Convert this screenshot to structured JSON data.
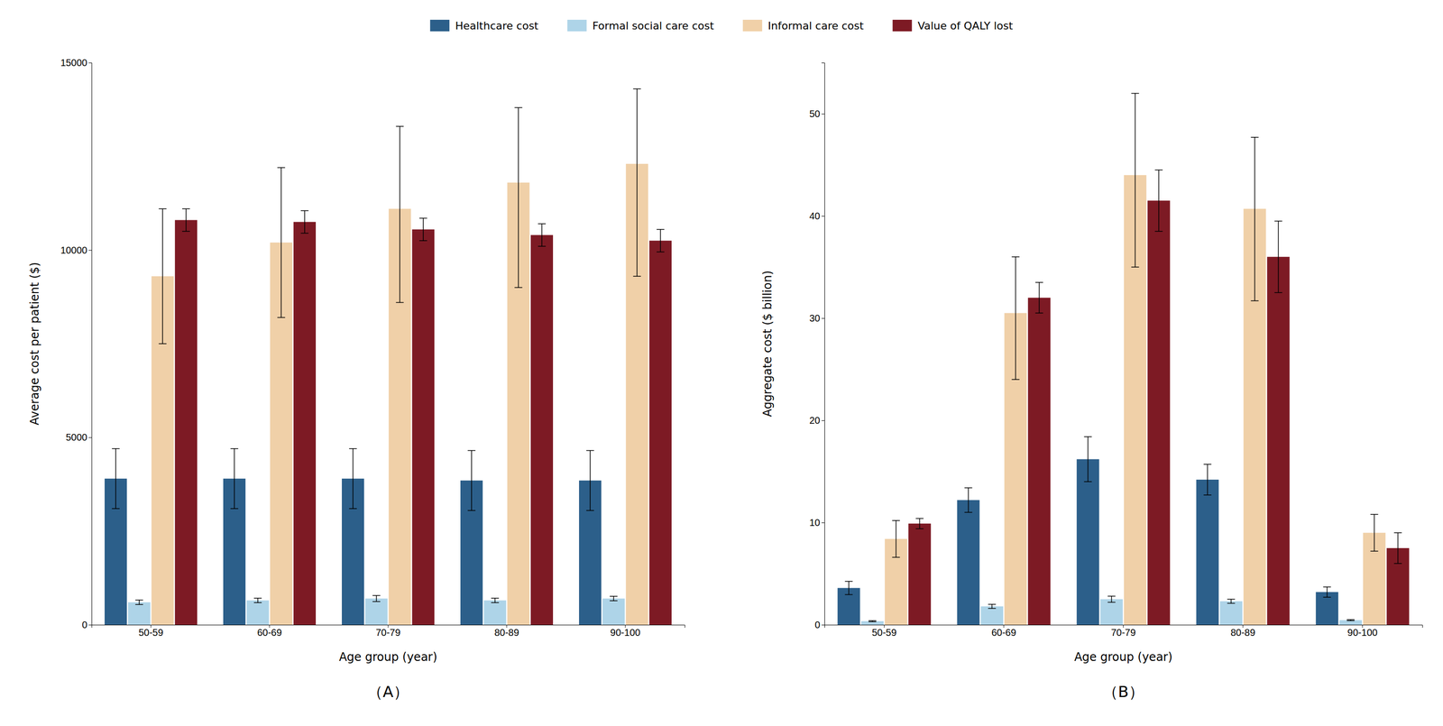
{
  "chart_data": [
    {
      "type": "bar",
      "title": "（A）",
      "xlabel": "Age group (year)",
      "ylabel": "Average cost per patient ($)",
      "categories": [
        "50-59",
        "60-69",
        "70-79",
        "80-89",
        "90-100"
      ],
      "series": [
        {
          "name": "Healthcare cost",
          "color": "#2c5f8a",
          "values": [
            3900,
            3900,
            3900,
            3850,
            3850
          ],
          "errors": [
            800,
            800,
            800,
            800,
            800
          ]
        },
        {
          "name": "Formal social care cost",
          "color": "#aed4e8",
          "values": [
            600,
            650,
            700,
            650,
            700
          ],
          "errors": [
            60,
            60,
            80,
            60,
            60
          ]
        },
        {
          "name": "Informal care cost",
          "color": "#f0d0a8",
          "values": [
            9300,
            10200,
            11100,
            11800,
            12300
          ],
          "errors_lo": [
            1800,
            2000,
            2500,
            2800,
            3000
          ],
          "errors_hi": [
            1800,
            2000,
            2200,
            2000,
            2000
          ]
        },
        {
          "name": "Value of QALY lost",
          "color": "#7d1a24",
          "values": [
            10800,
            10750,
            10550,
            10400,
            10250
          ],
          "errors_lo": [
            300,
            300,
            300,
            300,
            300
          ],
          "errors_hi": [
            300,
            300,
            300,
            300,
            300
          ]
        }
      ],
      "ylim": [
        0,
        15000
      ],
      "yticks": [
        0,
        5000,
        10000,
        15000
      ]
    },
    {
      "type": "bar",
      "title": "（B）",
      "xlabel": "Age group (year)",
      "ylabel": "Aggregate cost ($ billion)",
      "categories": [
        "50-59",
        "60-69",
        "70-79",
        "80-89",
        "90-100"
      ],
      "series": [
        {
          "color": "#2c5f8a",
          "values": [
            3.6,
            12.2,
            16.2,
            14.2,
            3.2
          ],
          "errors": [
            0.65,
            1.2,
            2.2,
            1.5,
            0.5
          ]
        },
        {
          "color": "#aed4e8",
          "values": [
            0.35,
            1.8,
            2.5,
            2.3,
            0.45
          ],
          "errors": [
            0.05,
            0.2,
            0.3,
            0.2,
            0.05
          ]
        },
        {
          "color": "#f0d0a8",
          "values": [
            8.4,
            30.5,
            44.0,
            40.7,
            9.0
          ],
          "errors_lo": [
            1.8,
            6.5,
            9.0,
            9.0,
            1.8
          ],
          "errors_hi": [
            1.8,
            5.5,
            8.0,
            7.0,
            1.8
          ]
        },
        {
          "color": "#7d1a24",
          "values": [
            9.9,
            32.0,
            41.5,
            36.0,
            7.5
          ],
          "errors_lo": [
            0.5,
            1.5,
            3.0,
            3.5,
            1.5
          ],
          "errors_hi": [
            0.5,
            1.5,
            3.0,
            3.5,
            1.5
          ]
        }
      ],
      "ylim": [
        0,
        55
      ],
      "yticks": [
        0,
        10,
        20,
        30,
        40,
        50
      ]
    }
  ]
}
